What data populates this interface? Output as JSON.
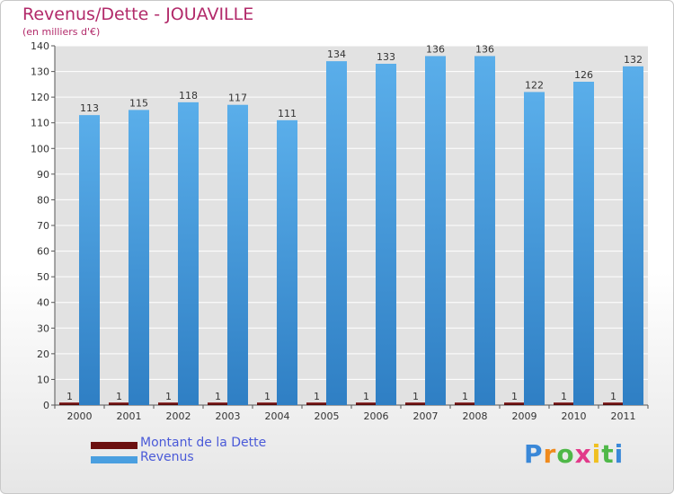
{
  "chart_data": {
    "type": "bar",
    "title": "Revenus/Dette - JOUAVILLE",
    "subtitle": "(en milliers d'€)",
    "categories": [
      "2000",
      "2001",
      "2002",
      "2003",
      "2004",
      "2005",
      "2006",
      "2007",
      "2008",
      "2009",
      "2010",
      "2011"
    ],
    "series": [
      {
        "name": "Montant de la Dette",
        "color": "#6b0f0f",
        "values": [
          1,
          1,
          1,
          1,
          1,
          1,
          1,
          1,
          1,
          1,
          1,
          1
        ]
      },
      {
        "name": "Revenus",
        "color": "#4a9fe0",
        "values": [
          113,
          115,
          118,
          117,
          111,
          134,
          133,
          136,
          136,
          122,
          126,
          132
        ]
      }
    ],
    "ylim": [
      0,
      140
    ],
    "yticks": [
      0,
      10,
      20,
      30,
      40,
      50,
      60,
      70,
      80,
      90,
      100,
      110,
      120,
      130,
      140
    ],
    "grid": true,
    "legend_position": "bottom-left"
  },
  "logo": {
    "text": "Proxiti",
    "letter_colors": [
      "#3a88d8",
      "#f08a1c",
      "#4fb848",
      "#e23a8a",
      "#f0c020",
      "#4fb848",
      "#3a88d8"
    ]
  }
}
